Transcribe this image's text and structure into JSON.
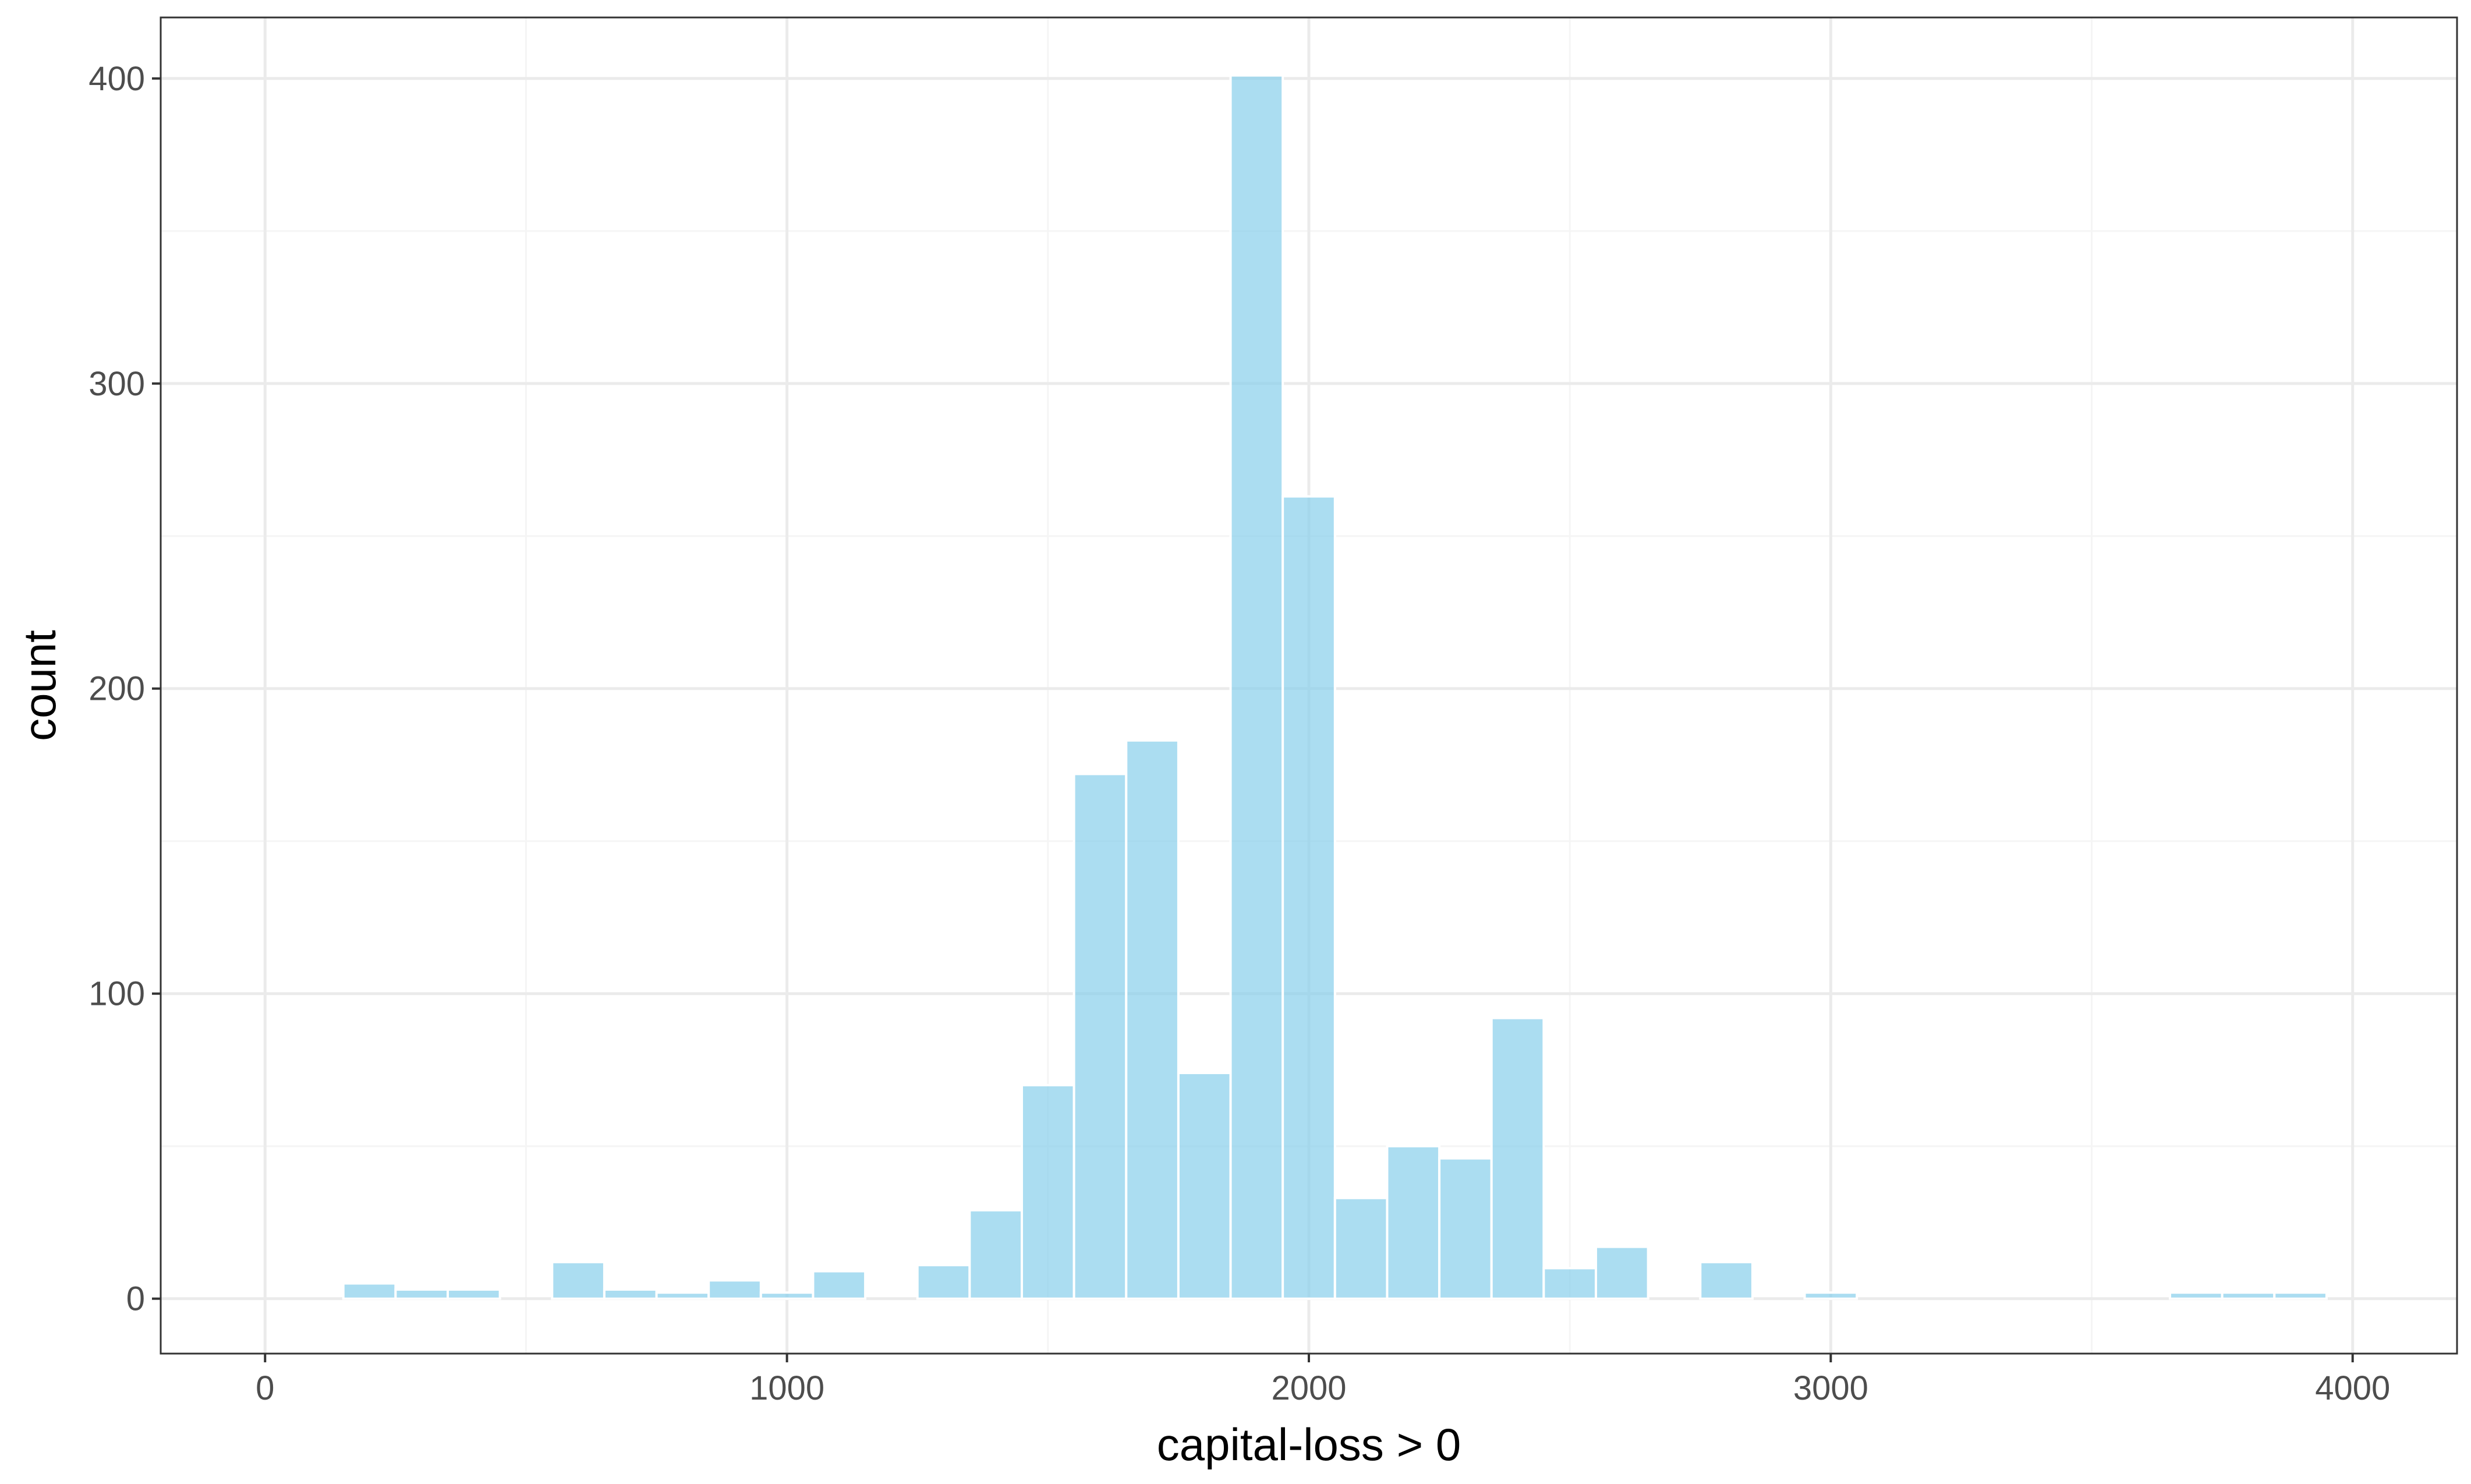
{
  "chart_data": {
    "type": "bar",
    "subtype": "histogram",
    "title": "",
    "xlabel": "capital-loss > 0",
    "ylabel": "count",
    "xlim": [
      -200,
      4200
    ],
    "ylim": [
      -18,
      420
    ],
    "x_ticks": [
      0,
      1000,
      2000,
      3000,
      4000
    ],
    "y_ticks": [
      0,
      100,
      200,
      300,
      400
    ],
    "x_tick_labels": [
      "0",
      "1000",
      "2000",
      "3000",
      "4000"
    ],
    "y_tick_labels": [
      "0",
      "100",
      "200",
      "300",
      "400"
    ],
    "bin_width": 100,
    "bins": [
      {
        "x0": 150,
        "x1": 250,
        "count": 5
      },
      {
        "x0": 250,
        "x1": 350,
        "count": 3
      },
      {
        "x0": 350,
        "x1": 450,
        "count": 3
      },
      {
        "x0": 550,
        "x1": 650,
        "count": 12
      },
      {
        "x0": 650,
        "x1": 750,
        "count": 3
      },
      {
        "x0": 750,
        "x1": 850,
        "count": 2
      },
      {
        "x0": 850,
        "x1": 950,
        "count": 6
      },
      {
        "x0": 950,
        "x1": 1050,
        "count": 2
      },
      {
        "x0": 1050,
        "x1": 1150,
        "count": 9
      },
      {
        "x0": 1250,
        "x1": 1350,
        "count": 11
      },
      {
        "x0": 1350,
        "x1": 1450,
        "count": 29
      },
      {
        "x0": 1450,
        "x1": 1550,
        "count": 70
      },
      {
        "x0": 1550,
        "x1": 1650,
        "count": 172
      },
      {
        "x0": 1650,
        "x1": 1750,
        "count": 183
      },
      {
        "x0": 1750,
        "x1": 1850,
        "count": 74
      },
      {
        "x0": 1850,
        "x1": 1950,
        "count": 401
      },
      {
        "x0": 1950,
        "x1": 2050,
        "count": 263
      },
      {
        "x0": 2050,
        "x1": 2150,
        "count": 33
      },
      {
        "x0": 2150,
        "x1": 2250,
        "count": 50
      },
      {
        "x0": 2250,
        "x1": 2350,
        "count": 46
      },
      {
        "x0": 2350,
        "x1": 2450,
        "count": 92
      },
      {
        "x0": 2450,
        "x1": 2550,
        "count": 10
      },
      {
        "x0": 2550,
        "x1": 2650,
        "count": 17
      },
      {
        "x0": 2750,
        "x1": 2850,
        "count": 12
      },
      {
        "x0": 2950,
        "x1": 3050,
        "count": 2
      },
      {
        "x0": 3650,
        "x1": 3750,
        "count": 2
      },
      {
        "x0": 3750,
        "x1": 3850,
        "count": 2
      },
      {
        "x0": 3850,
        "x1": 3950,
        "count": 2
      }
    ],
    "grid": true,
    "legend": "none",
    "colors": {
      "bar_fill": "#87ceeb",
      "bar_stroke": "#ffffff",
      "grid_major": "#ebebeb",
      "grid_minor": "#f5f5f5",
      "panel_border": "#333333",
      "tick_text": "#4d4d4d",
      "axis_title": "#000000"
    }
  }
}
